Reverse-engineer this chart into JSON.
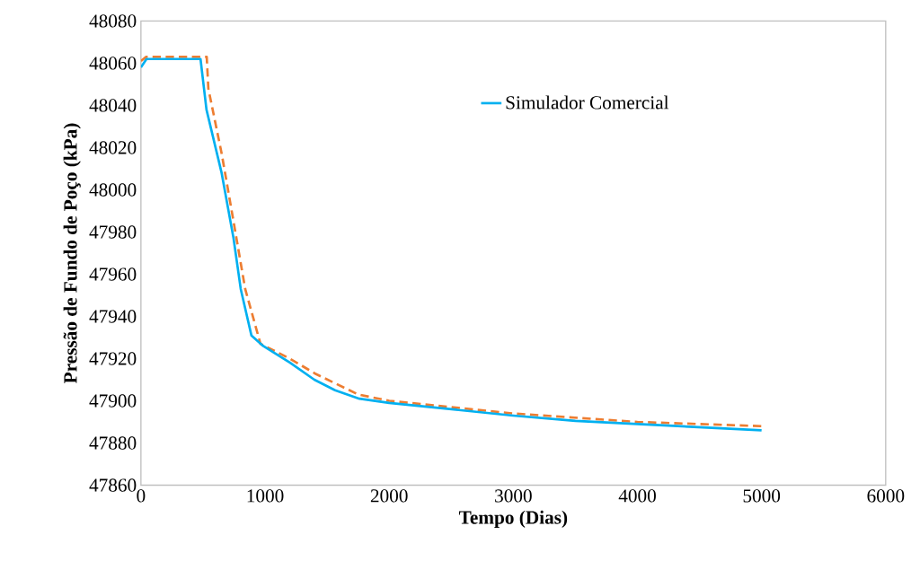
{
  "chart_data": {
    "type": "line",
    "xlabel": "Tempo (Dias)",
    "ylabel": "Pressão de Fundo de Poço (kPa)",
    "xlim": [
      0,
      6000
    ],
    "xticks": [
      0,
      1000,
      2000,
      3000,
      4000,
      5000,
      6000
    ],
    "ylim": [
      47860,
      48080
    ],
    "yticks": [
      47860,
      47880,
      47900,
      47920,
      47940,
      47960,
      47980,
      48000,
      48020,
      48040,
      48060,
      48080
    ],
    "grid": false,
    "legend": "right",
    "marker": "none",
    "series": [
      {
        "color": "#ed7d31",
        "line_style": "dashed",
        "x": [
          0,
          40,
          530,
          543,
          651,
          746,
          840,
          963,
          1200,
          1400,
          1750,
          2000,
          3000,
          4000,
          5000
        ],
        "values": [
          48061,
          48063,
          48063,
          48048,
          48017,
          47985,
          47953,
          47927,
          47920,
          47913,
          47903,
          47900,
          47894,
          47890,
          47888
        ]
      },
      {
        "name": "Simulador Comercial",
        "color": "#00b0f0",
        "line_style": "solid",
        "x": [
          0,
          45,
          480,
          528,
          650,
          746,
          804,
          890,
          985,
          1202,
          1397,
          1564,
          1760,
          2000,
          3000,
          3500,
          4000,
          5000
        ],
        "values": [
          48058,
          48062,
          48062,
          48038,
          48008,
          47977,
          47953,
          47931,
          47926,
          47918,
          47910,
          47905,
          47901,
          47899,
          47893,
          47890.5,
          47889,
          47886
        ]
      }
    ]
  }
}
